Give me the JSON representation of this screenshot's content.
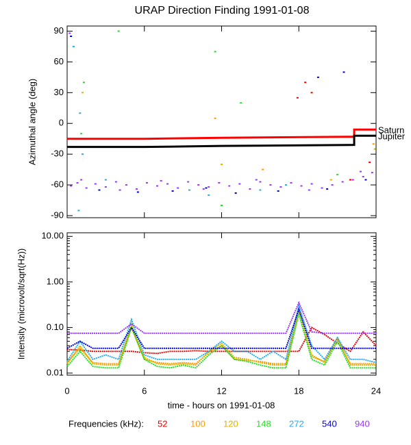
{
  "chart_data": [
    {
      "type": "scatter",
      "title": "URAP Direction Finding  1991-01-08",
      "ylabel": "Azimuthal angle (deg)",
      "xlim": [
        0,
        24
      ],
      "ylim": [
        -92,
        95
      ],
      "yticks": [
        -90,
        -60,
        -30,
        0,
        30,
        60,
        90
      ],
      "lines": [
        {
          "name": "Saturn",
          "color": "#ff0000",
          "x": [
            0,
            6,
            12,
            22.3,
            22.3,
            24
          ],
          "values": [
            -15,
            -15,
            -14,
            -13,
            -6,
            -6
          ]
        },
        {
          "name": "Jupiter",
          "color": "#000000",
          "x": [
            0,
            6,
            12,
            22.3,
            22.3,
            24
          ],
          "values": [
            -23,
            -23,
            -22,
            -21,
            -12,
            -12
          ]
        }
      ],
      "series": [
        {
          "color": "#9933ff",
          "x": [
            0.2,
            0.3,
            0.8,
            1.5,
            2.2,
            3,
            3.8,
            4.6,
            5.4,
            6.2,
            7,
            7.8,
            8.6,
            9.4,
            10.2,
            11,
            11.8,
            12.6,
            13.4,
            14.2,
            15,
            15.8,
            16.6,
            17.4,
            18.2,
            19,
            19.8,
            20.6,
            21.4,
            22.2,
            23,
            23.7,
            1.1,
            4.1,
            7.3,
            10.6,
            14.7,
            18.8,
            22.8
          ],
          "values": [
            88,
            -61,
            -58,
            -63,
            -59,
            -62,
            -57,
            -60,
            -64,
            -58,
            -61,
            -59,
            -63,
            -57,
            -60,
            -62,
            -58,
            -61,
            -59,
            -64,
            -57,
            -60,
            -62,
            -58,
            -61,
            -59,
            -63,
            -60,
            -57,
            -55,
            -52,
            -48,
            -55,
            -65,
            -56,
            -64,
            -55,
            -65,
            -47
          ]
        },
        {
          "color": "#0000cc",
          "x": [
            0.3,
            2.5,
            5.5,
            8.2,
            10.8,
            13.1,
            16.4,
            19.5,
            20.2,
            21.5,
            23.2
          ],
          "values": [
            85,
            -65,
            -67,
            -66,
            -63,
            -68,
            -66,
            45,
            -64,
            50,
            -55
          ]
        },
        {
          "color": "#22aaee",
          "x": [
            0.5,
            1.0,
            1.2,
            3.0,
            9.5,
            11.0,
            15.0,
            17.0,
            0.9
          ],
          "values": [
            75,
            10,
            -30,
            -55,
            -65,
            -70,
            -65,
            -60,
            -85
          ]
        },
        {
          "color": "#22dd22",
          "x": [
            1.3,
            11.5,
            12.0,
            4.0,
            13.5,
            21.0,
            1.1
          ],
          "values": [
            40,
            70,
            -80,
            90,
            20,
            -50,
            -10
          ]
        },
        {
          "color": "#e0b000",
          "x": [
            1.2,
            12.0,
            20.5,
            23.9
          ],
          "values": [
            30,
            -40,
            -55,
            -25
          ]
        },
        {
          "color": "#ff9900",
          "x": [
            11.5,
            15.2,
            23.8
          ],
          "values": [
            5,
            -45,
            -20
          ]
        },
        {
          "color": "#e00000",
          "x": [
            17.9,
            18.5,
            22.0,
            23.5,
            19.0
          ],
          "values": [
            25,
            40,
            -55,
            -38,
            30
          ]
        }
      ]
    },
    {
      "type": "line",
      "ylabel": "Intensity (microvolt/sqrt(Hz))",
      "xlabel": "time - hours on 1991-01-08",
      "log": true,
      "xlim": [
        0,
        24
      ],
      "xticks": [
        0,
        6,
        12,
        18,
        24
      ],
      "ylim": [
        0.009,
        12
      ],
      "yticks": [
        {
          "value": 0.01,
          "label": "0.01"
        },
        {
          "value": 0.1,
          "label": "0.10"
        },
        {
          "value": 1,
          "label": "1.00"
        },
        {
          "value": 10,
          "label": "10.00"
        }
      ],
      "legend_title": "Frequencies (kHz):",
      "x": [
        0,
        1,
        2,
        3,
        4,
        5,
        6,
        7,
        8,
        9,
        10,
        11,
        12,
        13,
        14,
        15,
        16,
        17,
        18,
        19,
        20,
        21,
        22,
        23,
        24
      ],
      "series": [
        {
          "name": "52",
          "color": "#e00000",
          "values": [
            0.033,
            0.032,
            0.03,
            0.03,
            0.03,
            0.03,
            0.028,
            0.027,
            0.03,
            0.03,
            0.031,
            0.03,
            0.03,
            0.03,
            0.03,
            0.03,
            0.03,
            0.03,
            0.03,
            0.1,
            0.07,
            0.045,
            0.03,
            0.08,
            0.04
          ]
        },
        {
          "name": "100",
          "color": "#ff9900",
          "values": [
            0.017,
            0.035,
            0.017,
            0.016,
            0.016,
            0.1,
            0.02,
            0.017,
            0.016,
            0.017,
            0.016,
            0.028,
            0.04,
            0.02,
            0.019,
            0.018,
            0.016,
            0.016,
            0.22,
            0.023,
            0.018,
            0.055,
            0.016,
            0.016,
            0.016
          ]
        },
        {
          "name": "120",
          "color": "#e0b000",
          "values": [
            0.016,
            0.04,
            0.016,
            0.015,
            0.015,
            0.12,
            0.022,
            0.016,
            0.015,
            0.016,
            0.015,
            0.03,
            0.045,
            0.022,
            0.02,
            0.017,
            0.015,
            0.015,
            0.25,
            0.025,
            0.017,
            0.06,
            0.015,
            0.015,
            0.015
          ]
        },
        {
          "name": "148",
          "color": "#22dd22",
          "values": [
            0.014,
            0.03,
            0.014,
            0.013,
            0.013,
            0.1,
            0.02,
            0.014,
            0.013,
            0.015,
            0.013,
            0.025,
            0.04,
            0.02,
            0.018,
            0.015,
            0.013,
            0.013,
            0.2,
            0.02,
            0.015,
            0.05,
            0.013,
            0.013,
            0.013
          ]
        },
        {
          "name": "272",
          "color": "#22aaee",
          "values": [
            0.018,
            0.05,
            0.02,
            0.025,
            0.02,
            0.15,
            0.025,
            0.02,
            0.02,
            0.02,
            0.02,
            0.03,
            0.05,
            0.03,
            0.03,
            0.02,
            0.03,
            0.02,
            0.3,
            0.04,
            0.02,
            0.06,
            0.02,
            0.02,
            0.017
          ]
        },
        {
          "name": "540",
          "color": "#0000cc",
          "values": [
            0.035,
            0.05,
            0.035,
            0.035,
            0.035,
            0.1,
            0.035,
            0.035,
            0.035,
            0.035,
            0.035,
            0.035,
            0.035,
            0.035,
            0.035,
            0.035,
            0.035,
            0.035,
            0.25,
            0.035,
            0.035,
            0.035,
            0.035,
            0.035,
            0.035
          ]
        },
        {
          "name": "940",
          "color": "#9933ff",
          "values": [
            0.075,
            0.075,
            0.075,
            0.075,
            0.075,
            0.12,
            0.075,
            0.075,
            0.075,
            0.075,
            0.075,
            0.075,
            0.075,
            0.075,
            0.075,
            0.075,
            0.075,
            0.075,
            0.35,
            0.08,
            0.075,
            0.075,
            0.075,
            0.075,
            0.075
          ]
        }
      ]
    }
  ]
}
